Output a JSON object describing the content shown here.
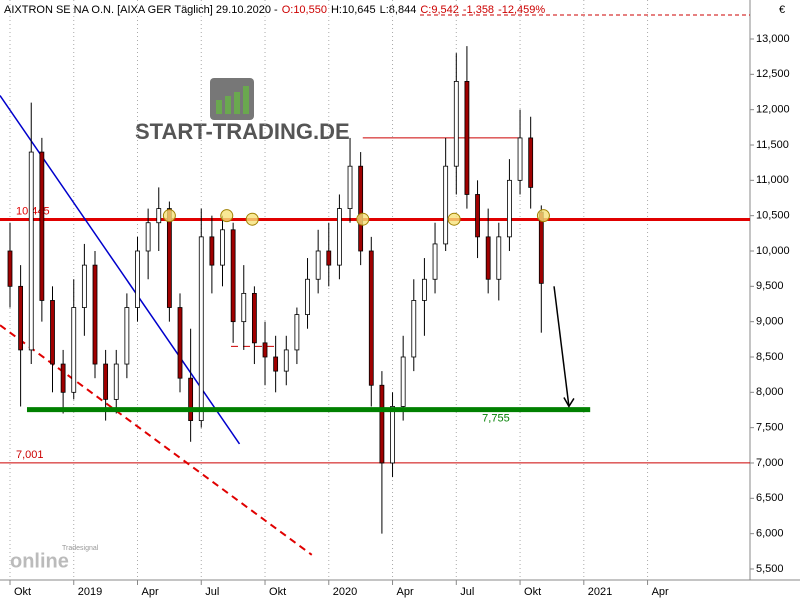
{
  "chart_data": {
    "type": "candlestick",
    "header": [
      {
        "text": "AIXTRON SE NA O.N. [AIXA GER  Täglich] 29.10.2020 -",
        "color": "#000000"
      },
      {
        "text": "O:10,550",
        "color": "#cc0000"
      },
      {
        "text": "H:10,645",
        "color": "#000000"
      },
      {
        "text": "L:8,844",
        "color": "#000000"
      },
      {
        "text": "C:9,542",
        "color": "#cc0000"
      },
      {
        "text": "-1,358",
        "color": "#cc0000"
      },
      {
        "text": "-12,459%",
        "color": "#cc0000"
      }
    ],
    "currency": "€",
    "watermark": "START-TRADING.DE",
    "brand": "online",
    "brand_small": "Tradesignal",
    "x": [
      0,
      0.5,
      1,
      1.5,
      2,
      2.5,
      3,
      3.5,
      4,
      4.5,
      5,
      5.5,
      6,
      6.5,
      7,
      7.5,
      8,
      8.5,
      9,
      9.5,
      10,
      10.5,
      11,
      11.5,
      12,
      12.5,
      13,
      13.5,
      14,
      14.5,
      15,
      15.5,
      16,
      16.5,
      17,
      17.5,
      18,
      18.5,
      19,
      19.5,
      20,
      20.5,
      21,
      21.5,
      22,
      22.5,
      23,
      23.5,
      24,
      24.5,
      25
    ],
    "open": [
      10.0,
      9.5,
      8.6,
      11.4,
      9.3,
      8.4,
      8.0,
      9.2,
      9.8,
      8.4,
      7.9,
      8.4,
      9.2,
      10.0,
      10.4,
      10.6,
      9.2,
      8.2,
      7.6,
      10.2,
      9.8,
      10.3,
      9.0,
      9.4,
      8.7,
      8.5,
      8.3,
      8.6,
      9.1,
      9.6,
      10.0,
      9.8,
      10.6,
      11.2,
      10.0,
      8.1,
      7.0,
      7.8,
      8.5,
      9.3,
      9.6,
      10.1,
      11.2,
      12.4,
      10.8,
      10.2,
      9.6,
      10.2,
      11.0,
      11.6,
      10.55
    ],
    "high": [
      10.4,
      9.8,
      12.1,
      11.6,
      9.5,
      8.6,
      9.6,
      10.1,
      10.0,
      8.6,
      8.6,
      9.4,
      10.2,
      10.6,
      10.9,
      10.7,
      9.4,
      8.9,
      10.6,
      10.5,
      10.5,
      10.4,
      9.8,
      9.5,
      9.0,
      8.8,
      8.8,
      9.2,
      9.9,
      10.3,
      10.4,
      10.8,
      11.6,
      11.4,
      10.2,
      8.3,
      8.0,
      8.8,
      9.6,
      9.9,
      10.4,
      11.6,
      12.8,
      12.9,
      11.0,
      10.6,
      10.4,
      11.3,
      12.0,
      11.9,
      10.645
    ],
    "low": [
      9.2,
      7.8,
      8.4,
      9.0,
      8.0,
      7.7,
      7.9,
      8.8,
      8.2,
      7.6,
      7.7,
      8.2,
      9.0,
      9.6,
      10.0,
      9.0,
      8.0,
      7.3,
      7.5,
      9.4,
      9.5,
      8.7,
      8.6,
      8.4,
      8.1,
      8.0,
      8.1,
      8.4,
      8.9,
      9.4,
      9.5,
      9.6,
      10.4,
      9.8,
      7.8,
      6.0,
      6.8,
      7.6,
      8.3,
      8.8,
      9.4,
      10.0,
      10.8,
      10.6,
      9.9,
      9.4,
      9.3,
      10.0,
      10.8,
      10.6,
      8.844
    ],
    "close": [
      9.5,
      8.6,
      11.4,
      9.3,
      8.4,
      8.0,
      9.2,
      9.8,
      8.4,
      7.9,
      8.4,
      9.2,
      10.0,
      10.4,
      10.6,
      9.2,
      8.2,
      7.6,
      10.2,
      9.8,
      10.3,
      9.0,
      9.4,
      8.7,
      8.5,
      8.3,
      8.6,
      9.1,
      9.6,
      10.0,
      9.8,
      10.6,
      11.2,
      10.0,
      8.1,
      7.0,
      7.8,
      8.5,
      9.3,
      9.6,
      10.1,
      11.2,
      12.4,
      10.8,
      10.2,
      9.6,
      10.2,
      11.0,
      11.6,
      10.9,
      9.542
    ],
    "up_color": "#ffffff",
    "down_color": "#a00000",
    "xlim": [
      -0.47,
      34.82
    ],
    "ylim": [
      5.344,
      13.552
    ],
    "xticks": [
      {
        "value": 0,
        "label": "Okt"
      },
      {
        "value": 3,
        "label": "2019"
      },
      {
        "value": 6,
        "label": "Apr"
      },
      {
        "value": 9,
        "label": "Jul"
      },
      {
        "value": 12,
        "label": "Okt"
      },
      {
        "value": 15,
        "label": "2020"
      },
      {
        "value": 18,
        "label": "Apr"
      },
      {
        "value": 21,
        "label": "Jul"
      },
      {
        "value": 24,
        "label": "Okt"
      },
      {
        "value": 27,
        "label": "2021"
      },
      {
        "value": 30,
        "label": "Apr"
      }
    ],
    "yticks": [
      {
        "value": 5.5,
        "label": "5,500"
      },
      {
        "value": 6,
        "label": "6,000"
      },
      {
        "value": 6.5,
        "label": "6,500"
      },
      {
        "value": 7,
        "label": "7,000"
      },
      {
        "value": 7.5,
        "label": "7,500"
      },
      {
        "value": 8,
        "label": "8,000"
      },
      {
        "value": 8.5,
        "label": "8,500"
      },
      {
        "value": 9,
        "label": "9,000"
      },
      {
        "value": 9.5,
        "label": "9,500"
      },
      {
        "value": 10,
        "label": "10,000"
      },
      {
        "value": 10.5,
        "label": "10,500"
      },
      {
        "value": 11,
        "label": "11,000"
      },
      {
        "value": 11.5,
        "label": "11,500"
      },
      {
        "value": 12,
        "label": "12,000"
      },
      {
        "value": 12.5,
        "label": "12,500"
      },
      {
        "value": 13,
        "label": "13,000"
      }
    ],
    "grid": true,
    "levels": [
      {
        "value": 10.445,
        "label": "10,445",
        "color": "#e00000",
        "width": 3
      },
      {
        "value": 7.001,
        "label": "7,001",
        "color": "#cc0000",
        "width": 1
      }
    ],
    "support": {
      "value": 7.755,
      "label": "7,755",
      "color": "#008000",
      "x": [
        0.8,
        27.3
      ]
    },
    "top_line": {
      "value": 13.34,
      "color": "#cc0000"
    },
    "lines": [
      {
        "x": [
          -0.47,
          10.8
        ],
        "y": [
          12.2,
          7.27
        ],
        "color": "#0000cc",
        "dash": false,
        "width": 1.5
      },
      {
        "x": [
          -0.47,
          14.2
        ],
        "y": [
          8.95,
          5.7
        ],
        "color": "#e00000",
        "dash": true,
        "width": 2
      },
      {
        "x": [
          16.6,
          24.0
        ],
        "y": [
          11.6,
          11.6
        ],
        "color": "#cc0000",
        "dash": false,
        "width": 1
      },
      {
        "x": [
          10.4,
          12.6
        ],
        "y": [
          8.65,
          8.65
        ],
        "color": "#cc0000",
        "dash": true,
        "width": 1
      }
    ],
    "arrow": {
      "x": [
        25.6,
        26.3
      ],
      "y": [
        9.5,
        7.8
      ]
    },
    "markers": {
      "x": [
        7.5,
        10.2,
        11.4,
        16.6,
        20.9,
        25.1
      ],
      "y": [
        10.5,
        10.5,
        10.45,
        10.45,
        10.45,
        10.5
      ]
    }
  }
}
